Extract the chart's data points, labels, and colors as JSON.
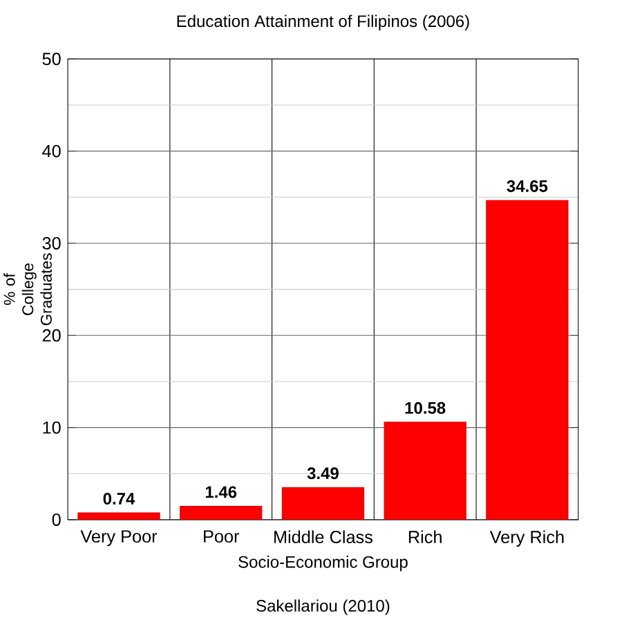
{
  "chart_data": {
    "type": "bar",
    "title": "Education Attainment of Filipinos (2006)",
    "xlabel": "Socio-Economic Group",
    "ylabel": "% of College Graduates",
    "categories": [
      "Very Poor",
      "Poor",
      "Middle Class",
      "Rich",
      "Very Rich"
    ],
    "values": [
      0.74,
      1.46,
      3.49,
      10.58,
      34.65
    ],
    "color": "#ff0000",
    "ylim": [
      0,
      50
    ],
    "yticks": [
      0,
      {
        "value": 5,
        "label": null
      },
      10,
      {
        "value": 15,
        "label": null
      },
      20,
      {
        "value": 25,
        "label": null
      },
      30,
      {
        "value": 35,
        "label": null
      },
      40,
      {
        "value": 45,
        "label": null
      },
      50
    ],
    "grid": true,
    "data_labels": true,
    "annotations": [
      "Sakellariou (2010)"
    ]
  }
}
